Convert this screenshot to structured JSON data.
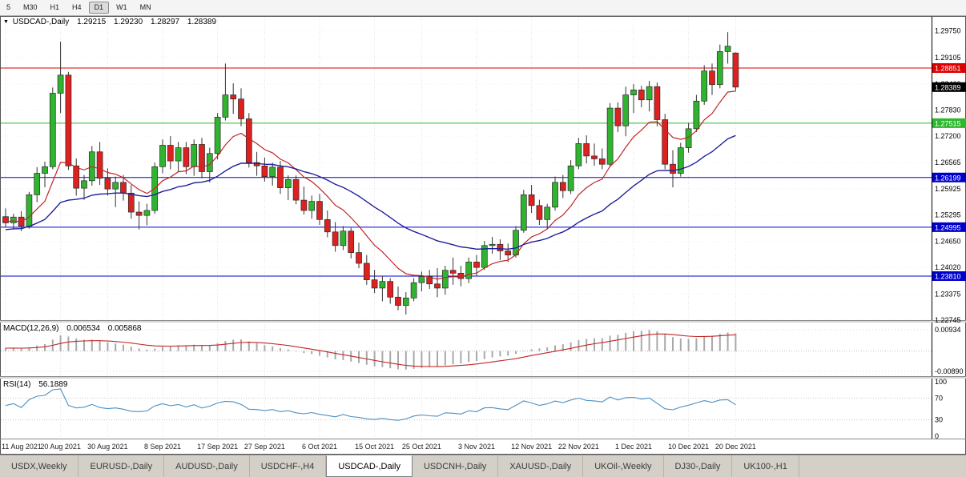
{
  "window": {
    "toolbar": {
      "buttons": [
        "5",
        "M30",
        "H1",
        "H4",
        "D1",
        "W1",
        "MN"
      ],
      "active": "D1"
    },
    "tabs": {
      "items": [
        "USDX,Weekly",
        "EURUSD-,Daily",
        "AUDUSD-,Daily",
        "USDCHF-,H4",
        "USDCAD-,Daily",
        "USDCNH-,Daily",
        "XAUUSD-,Daily",
        "UKOil-,Weekly",
        "DJ30-,Daily",
        "UK100-,H1"
      ],
      "active": "USDCAD-,Daily"
    }
  },
  "chart_title": {
    "marker": "▼",
    "symbol": "USDCAD-,Daily",
    "open": "1.29215",
    "high": "1.29230",
    "low": "1.28297",
    "close": "1.28389"
  },
  "chart_data": {
    "type": "candlestick",
    "symbol": "USDCAD",
    "timeframe": "Daily",
    "ylim": [
      1.227429,
      1.297236
    ],
    "y_tick_labels": [
      "1.29750",
      "1.29105",
      "1.28460",
      "1.27830",
      "1.27200",
      "1.26565",
      "1.25925",
      "1.25295",
      "1.24650",
      "1.24020",
      "1.23375",
      "1.22745"
    ],
    "x_labels": [
      {
        "text": "11 Aug 2021",
        "i": 0
      },
      {
        "text": "20 Aug 2021",
        "i": 7
      },
      {
        "text": "30 Aug 2021",
        "i": 13
      },
      {
        "text": "8 Sep 2021",
        "i": 20
      },
      {
        "text": "17 Sep 2021",
        "i": 27
      },
      {
        "text": "27 Sep 2021",
        "i": 33
      },
      {
        "text": "6 Oct 2021",
        "i": 40
      },
      {
        "text": "15 Oct 2021",
        "i": 47
      },
      {
        "text": "25 Oct 2021",
        "i": 53
      },
      {
        "text": "3 Nov 2021",
        "i": 60
      },
      {
        "text": "12 Nov 2021",
        "i": 67
      },
      {
        "text": "22 Nov 2021",
        "i": 73
      },
      {
        "text": "1 Dec 2021",
        "i": 80
      },
      {
        "text": "10 Dec 2021",
        "i": 87
      },
      {
        "text": "20 Dec 2021",
        "i": 93
      }
    ],
    "current_price": "1.28389",
    "hlines": [
      {
        "price": "1.28851",
        "color": "#dd0000"
      },
      {
        "price": "1.27515",
        "color": "#2eb82e"
      },
      {
        "price": "1.26199",
        "color": "#0000cc"
      },
      {
        "price": "1.24995",
        "color": "#0000cc"
      },
      {
        "price": "1.23810",
        "color": "#0000cc"
      }
    ],
    "overlays": [
      {
        "type": "ema",
        "period": 10,
        "color": "#c22626"
      },
      {
        "type": "ema",
        "period": 30,
        "color": "#20209a"
      }
    ],
    "colors": {
      "bull": "#30b430",
      "bear": "#dd2020",
      "wick": "#333333",
      "grid": "#e3e3e3",
      "current_badge": "#000000"
    },
    "ohlc": [
      [
        1.2525,
        1.2545,
        1.25,
        1.251
      ],
      [
        1.251,
        1.2532,
        1.2494,
        1.2524
      ],
      [
        1.2524,
        1.2538,
        1.249,
        1.2502
      ],
      [
        1.2502,
        1.2585,
        1.2496,
        1.2578
      ],
      [
        1.2578,
        1.2645,
        1.256,
        1.263
      ],
      [
        1.263,
        1.2658,
        1.2596,
        1.2646
      ],
      [
        1.2646,
        1.2838,
        1.264,
        1.2824
      ],
      [
        1.2824,
        1.2949,
        1.2776,
        1.2868
      ],
      [
        1.2868,
        1.2876,
        1.2638,
        1.2648
      ],
      [
        1.2648,
        1.2666,
        1.2576,
        1.2594
      ],
      [
        1.2594,
        1.2626,
        1.2566,
        1.2612
      ],
      [
        1.2612,
        1.2696,
        1.26,
        1.2682
      ],
      [
        1.2682,
        1.2706,
        1.2602,
        1.2618
      ],
      [
        1.2618,
        1.2642,
        1.2576,
        1.2592
      ],
      [
        1.2592,
        1.2622,
        1.2548,
        1.2608
      ],
      [
        1.2608,
        1.2626,
        1.2564,
        1.2582
      ],
      [
        1.2582,
        1.2602,
        1.252,
        1.2536
      ],
      [
        1.2536,
        1.2562,
        1.2494,
        1.2528
      ],
      [
        1.2528,
        1.2556,
        1.2504,
        1.254
      ],
      [
        1.254,
        1.2656,
        1.2532,
        1.2646
      ],
      [
        1.2646,
        1.2712,
        1.263,
        1.2698
      ],
      [
        1.2698,
        1.272,
        1.264,
        1.266
      ],
      [
        1.266,
        1.2706,
        1.2634,
        1.2692
      ],
      [
        1.2692,
        1.2706,
        1.2628,
        1.2646
      ],
      [
        1.2646,
        1.2712,
        1.2624,
        1.27
      ],
      [
        1.27,
        1.2716,
        1.2618,
        1.2634
      ],
      [
        1.2634,
        1.2692,
        1.2608,
        1.2678
      ],
      [
        1.2678,
        1.2776,
        1.2664,
        1.2766
      ],
      [
        1.2766,
        1.2896,
        1.2758,
        1.282
      ],
      [
        1.282,
        1.2848,
        1.2774,
        1.281
      ],
      [
        1.281,
        1.2836,
        1.2744,
        1.2762
      ],
      [
        1.2762,
        1.2776,
        1.2644,
        1.2656
      ],
      [
        1.2656,
        1.2682,
        1.2624,
        1.2648
      ],
      [
        1.2648,
        1.2668,
        1.261,
        1.2622
      ],
      [
        1.2622,
        1.2656,
        1.26,
        1.2645
      ],
      [
        1.2645,
        1.266,
        1.258,
        1.2595
      ],
      [
        1.2595,
        1.2625,
        1.2565,
        1.2615
      ],
      [
        1.2615,
        1.2625,
        1.2555,
        1.2565
      ],
      [
        1.2565,
        1.2598,
        1.253,
        1.254
      ],
      [
        1.254,
        1.2576,
        1.252,
        1.2562
      ],
      [
        1.2562,
        1.258,
        1.2505,
        1.2518
      ],
      [
        1.2518,
        1.254,
        1.2475,
        1.2488
      ],
      [
        1.2488,
        1.2512,
        1.244,
        1.2455
      ],
      [
        1.2455,
        1.2502,
        1.2444,
        1.249
      ],
      [
        1.249,
        1.2498,
        1.2424,
        1.2438
      ],
      [
        1.2438,
        1.2462,
        1.24,
        1.2412
      ],
      [
        1.2412,
        1.2432,
        1.236,
        1.2372
      ],
      [
        1.2372,
        1.2396,
        1.234,
        1.2352
      ],
      [
        1.2352,
        1.2382,
        1.232,
        1.2368
      ],
      [
        1.2368,
        1.2376,
        1.2314,
        1.233
      ],
      [
        1.233,
        1.2356,
        1.2298,
        1.231
      ],
      [
        1.231,
        1.2342,
        1.2288,
        1.2328
      ],
      [
        1.2328,
        1.2376,
        1.232,
        1.2365
      ],
      [
        1.2365,
        1.2392,
        1.2344,
        1.238
      ],
      [
        1.238,
        1.2396,
        1.235,
        1.2362
      ],
      [
        1.2362,
        1.24,
        1.233,
        1.2352
      ],
      [
        1.2352,
        1.2406,
        1.2336,
        1.2395
      ],
      [
        1.2395,
        1.2426,
        1.236,
        1.2388
      ],
      [
        1.2388,
        1.2406,
        1.2356,
        1.2375
      ],
      [
        1.2375,
        1.2426,
        1.2364,
        1.2415
      ],
      [
        1.2415,
        1.2432,
        1.238,
        1.2402
      ],
      [
        1.2402,
        1.2466,
        1.2396,
        1.2455
      ],
      [
        1.2455,
        1.2476,
        1.2435,
        1.2458
      ],
      [
        1.2458,
        1.247,
        1.242,
        1.2442
      ],
      [
        1.2442,
        1.246,
        1.2415,
        1.2432
      ],
      [
        1.2432,
        1.2502,
        1.2426,
        1.2492
      ],
      [
        1.2492,
        1.259,
        1.2486,
        1.2578
      ],
      [
        1.2578,
        1.2602,
        1.2534,
        1.2552
      ],
      [
        1.2552,
        1.2566,
        1.2505,
        1.2518
      ],
      [
        1.2518,
        1.2556,
        1.2496,
        1.2548
      ],
      [
        1.2548,
        1.2622,
        1.254,
        1.2608
      ],
      [
        1.2608,
        1.2626,
        1.257,
        1.2588
      ],
      [
        1.2588,
        1.2662,
        1.258,
        1.2648
      ],
      [
        1.2648,
        1.2716,
        1.264,
        1.2702
      ],
      [
        1.2702,
        1.2722,
        1.2654,
        1.2672
      ],
      [
        1.2672,
        1.2702,
        1.2648,
        1.2665
      ],
      [
        1.2665,
        1.269,
        1.264,
        1.2652
      ],
      [
        1.2652,
        1.28,
        1.2645,
        1.2788
      ],
      [
        1.2788,
        1.2802,
        1.273,
        1.2745
      ],
      [
        1.2745,
        1.284,
        1.272,
        1.282
      ],
      [
        1.282,
        1.2846,
        1.2776,
        1.2832
      ],
      [
        1.2832,
        1.2842,
        1.279,
        1.2808
      ],
      [
        1.2808,
        1.2854,
        1.278,
        1.284
      ],
      [
        1.284,
        1.285,
        1.2744,
        1.276
      ],
      [
        1.276,
        1.2774,
        1.264,
        1.2652
      ],
      [
        1.2652,
        1.2686,
        1.2596,
        1.263
      ],
      [
        1.263,
        1.2704,
        1.2622,
        1.2692
      ],
      [
        1.2692,
        1.2752,
        1.268,
        1.2738
      ],
      [
        1.2738,
        1.282,
        1.273,
        1.2805
      ],
      [
        1.2805,
        1.2892,
        1.2796,
        1.2878
      ],
      [
        1.2878,
        1.2896,
        1.282,
        1.2845
      ],
      [
        1.2845,
        1.2942,
        1.2836,
        1.2925
      ],
      [
        1.2925,
        1.2972,
        1.2896,
        1.2938
      ],
      [
        1.29215,
        1.2923,
        1.28297,
        1.28389
      ]
    ]
  },
  "macd_panel": {
    "label": "MACD(12,26,9)",
    "main_value": "0.006534",
    "signal_value": "0.005868",
    "fast": 12,
    "slow": 26,
    "signal": 9,
    "axis_labels": [
      {
        "text": "0.00934",
        "v": 0.00934
      },
      {
        "text": "-0.00890",
        "v": -0.0089
      }
    ],
    "ylim": [
      -0.011,
      0.0125
    ],
    "histogram_color": "#a9a9a9",
    "signal_color": "#c22626"
  },
  "rsi_panel": {
    "label": "RSI(14)",
    "value": "56.1889",
    "period": 14,
    "axis_labels": [
      {
        "text": "100",
        "v": 100
      },
      {
        "text": "70",
        "v": 70
      },
      {
        "text": "30",
        "v": 30
      },
      {
        "text": "0",
        "v": 0
      }
    ],
    "levels": [
      70,
      30
    ],
    "ylim": [
      -2.9,
      105.9
    ],
    "color": "#4a90c4"
  }
}
